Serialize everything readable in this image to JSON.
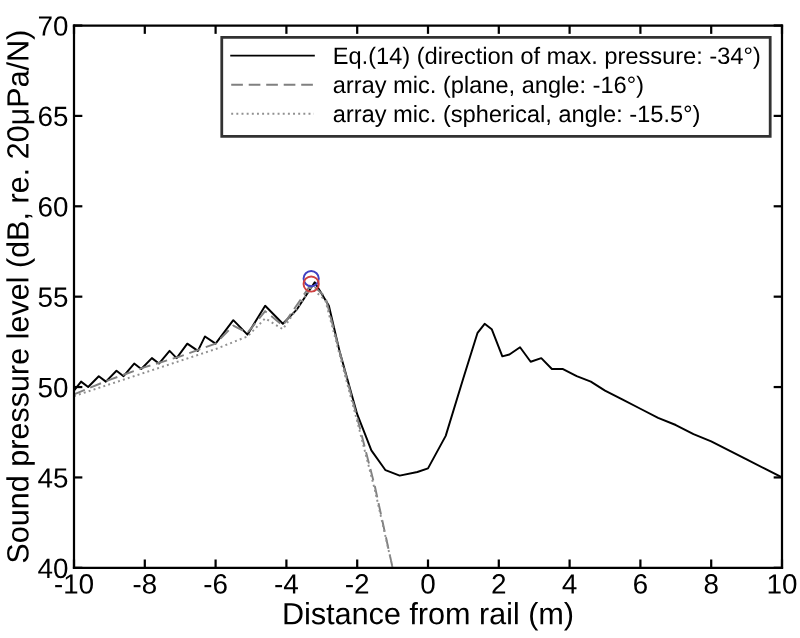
{
  "chart_data": {
    "type": "line",
    "xlabel": "Distance from rail (m)",
    "ylabel": "Sound pressure level (dB, re. 20μPa/N)",
    "xlim": [
      -10,
      10
    ],
    "ylim": [
      40,
      70
    ],
    "xticks": [
      -10,
      -8,
      -6,
      -4,
      -2,
      0,
      2,
      4,
      6,
      8,
      10
    ],
    "yticks": [
      40,
      45,
      50,
      55,
      60,
      65,
      70
    ],
    "grid": false,
    "legend": "top right",
    "series": [
      {
        "name": "Eq.(14) (direction of max. pressure: -34°)",
        "color": "#000000",
        "line_style": "solid",
        "x": [
          -10,
          -9.8,
          -9.6,
          -9.3,
          -9.1,
          -8.8,
          -8.6,
          -8.3,
          -8.1,
          -7.8,
          -7.6,
          -7.3,
          -7.1,
          -6.8,
          -6.5,
          -6.3,
          -6.0,
          -5.5,
          -5.1,
          -4.6,
          -4.1,
          -3.7,
          -3.2,
          -2.8,
          -2.5,
          -2.0,
          -1.6,
          -1.2,
          -0.8,
          -0.3,
          0,
          0.5,
          1.0,
          1.4,
          1.6,
          1.8,
          2.1,
          2.3,
          2.6,
          2.9,
          3.2,
          3.5,
          3.8,
          4.2,
          4.6,
          5,
          5.5,
          6,
          6.5,
          7,
          7.5,
          8,
          8.5,
          9,
          9.5,
          10
        ],
        "values": [
          49.8,
          50.3,
          50.0,
          50.6,
          50.3,
          50.9,
          50.6,
          51.3,
          51.0,
          51.6,
          51.3,
          52.0,
          51.6,
          52.4,
          52.0,
          52.8,
          52.4,
          53.7,
          52.9,
          54.5,
          53.5,
          54.3,
          55.8,
          54.5,
          52.0,
          48.5,
          46.5,
          45.4,
          45.1,
          45.3,
          45.5,
          47.3,
          50.5,
          53.0,
          53.5,
          53.2,
          51.7,
          51.8,
          52.2,
          51.4,
          51.6,
          51.0,
          51.0,
          50.6,
          50.3,
          49.8,
          49.3,
          48.8,
          48.3,
          47.9,
          47.4,
          47.0,
          46.5,
          46.0,
          45.5,
          45.0
        ]
      },
      {
        "name": "array mic. (plane, angle: -16°)",
        "color": "#808080",
        "line_style": "dashed",
        "x": [
          -10,
          -9,
          -8,
          -7,
          -6,
          -5.5,
          -5.1,
          -4.6,
          -4.1,
          -3.3,
          -2.9,
          -2.5,
          -2.0,
          -1.5,
          -1.0
        ],
        "values": [
          49.6,
          50.4,
          51.1,
          51.7,
          52.4,
          53.4,
          53.0,
          54.2,
          53.4,
          55.7,
          55.0,
          52.0,
          48.3,
          44.5,
          40.0
        ]
      },
      {
        "name": "array mic. (spherical, angle: -15.5°)",
        "color": "#909090",
        "line_style": "dotted",
        "x": [
          -10,
          -8,
          -6,
          -5.1,
          -4.6,
          -4.1,
          -3.3,
          -2.9,
          -2.5,
          -2.0,
          -1.5,
          -1.0
        ],
        "values": [
          49.5,
          50.8,
          52.1,
          52.8,
          53.8,
          53.2,
          55.5,
          54.8,
          51.8,
          48.1,
          44.3,
          40.0
        ]
      },
      {
        "type": "scatter",
        "marker": "circle",
        "color": "#4040c0",
        "x": [
          -3.3
        ],
        "values": [
          56.0
        ]
      },
      {
        "type": "scatter",
        "marker": "circle",
        "color": "#d04040",
        "x": [
          -3.3
        ],
        "values": [
          55.7
        ]
      }
    ]
  }
}
